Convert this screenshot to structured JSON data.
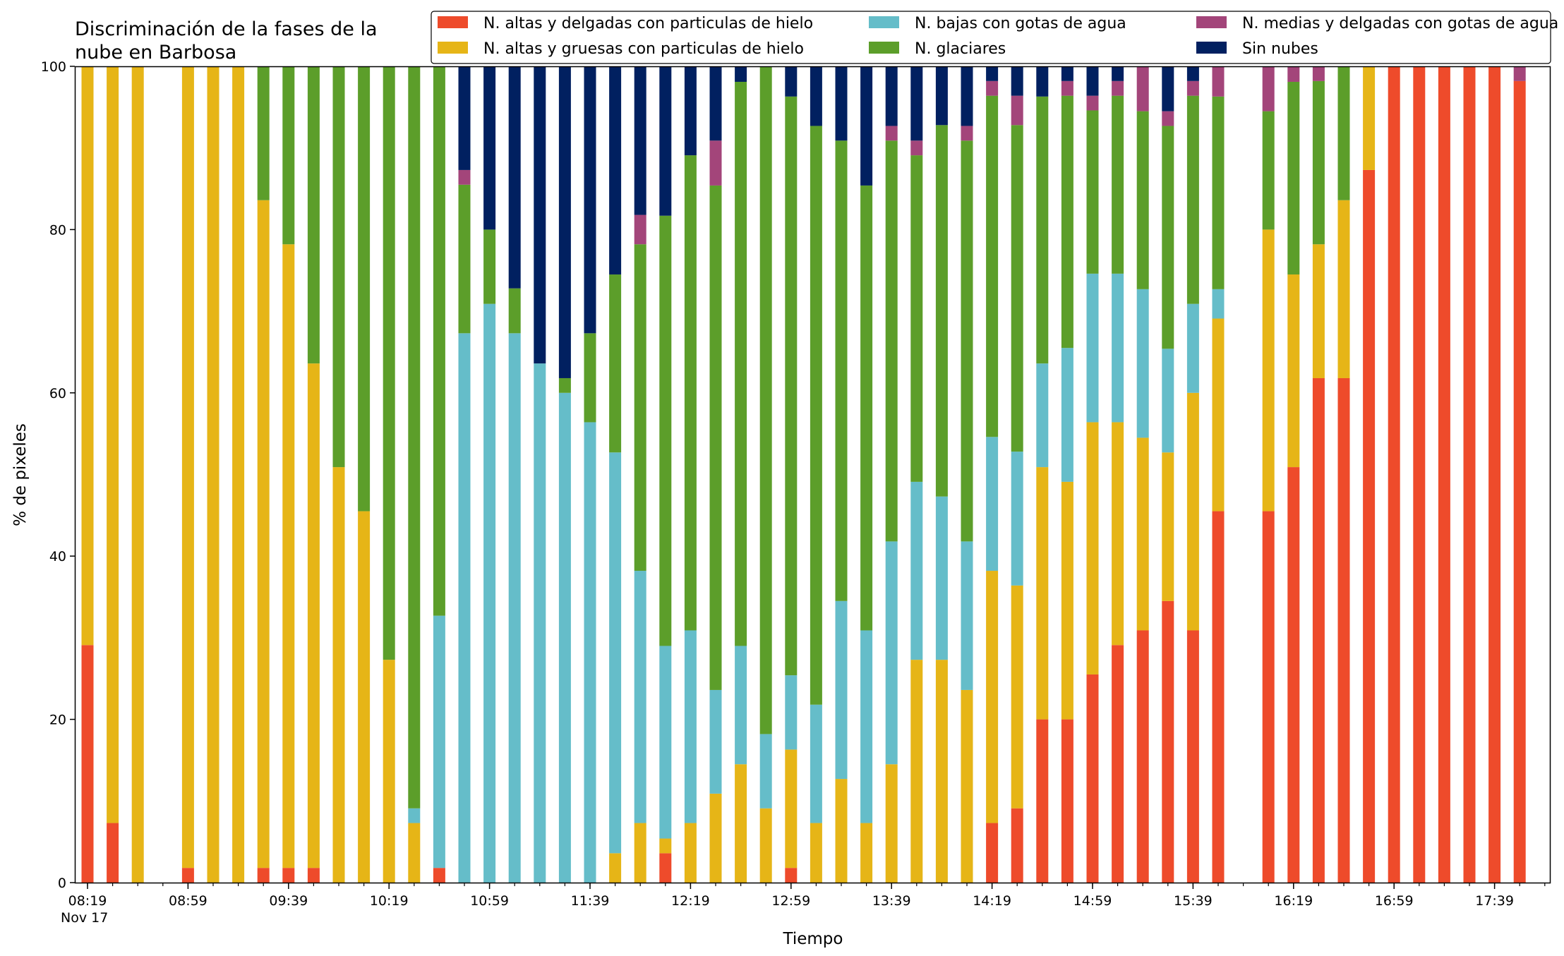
{
  "chart_data": {
    "type": "bar",
    "stacked": true,
    "title_lines": [
      "Discriminación de la fases de la",
      "nube en Barbosa"
    ],
    "xlabel": "Tiempo",
    "ylabel": "% de pixeles",
    "ylim": [
      0,
      100
    ],
    "yticks": [
      0,
      20,
      40,
      60,
      80,
      100
    ],
    "x_tick_labels": [
      {
        "slot": 0,
        "label": "08:19"
      },
      {
        "slot": 4,
        "label": "08:59"
      },
      {
        "slot": 8,
        "label": "09:39"
      },
      {
        "slot": 12,
        "label": "10:19"
      },
      {
        "slot": 16,
        "label": "10:59"
      },
      {
        "slot": 20,
        "label": "11:39"
      },
      {
        "slot": 24,
        "label": "12:19"
      },
      {
        "slot": 28,
        "label": "12:59"
      },
      {
        "slot": 32,
        "label": "13:39"
      },
      {
        "slot": 36,
        "label": "14:19"
      },
      {
        "slot": 40,
        "label": "14:59"
      },
      {
        "slot": 44,
        "label": "15:39"
      },
      {
        "slot": 48,
        "label": "16:19"
      },
      {
        "slot": 52,
        "label": "16:59"
      },
      {
        "slot": 56,
        "label": "17:39"
      }
    ],
    "x_sublabel": "Nov 17",
    "grid": false,
    "legend_position": "top-right",
    "series": [
      {
        "name": "N. altas y delgadas con particulas de hielo",
        "color": "#ee4b2b"
      },
      {
        "name": "N. altas y gruesas con particulas de hielo",
        "color": "#e6b517"
      },
      {
        "name": "N. bajas con gotas de agua",
        "color": "#65bdc9"
      },
      {
        "name": "N. glaciares",
        "color": "#5c9e2a"
      },
      {
        "name": "N. medias y delgadas con gotas de agua",
        "color": "#a3457a"
      },
      {
        "name": "Sin nubes",
        "color": "#012060"
      }
    ],
    "bars": [
      {
        "slot": 0,
        "values": [
          29.1,
          70.9,
          0,
          0,
          0,
          0
        ]
      },
      {
        "slot": 1,
        "values": [
          7.3,
          92.7,
          0,
          0,
          0,
          0
        ]
      },
      {
        "slot": 2,
        "values": [
          0,
          100,
          0,
          0,
          0,
          0
        ]
      },
      {
        "slot": 4,
        "values": [
          1.8,
          98.2,
          0,
          0,
          0,
          0
        ]
      },
      {
        "slot": 5,
        "values": [
          0,
          100,
          0,
          0,
          0,
          0
        ]
      },
      {
        "slot": 6,
        "values": [
          0,
          100,
          0,
          0,
          0,
          0
        ]
      },
      {
        "slot": 7,
        "values": [
          1.8,
          81.8,
          0,
          16.4,
          0,
          0
        ]
      },
      {
        "slot": 8,
        "values": [
          1.8,
          76.4,
          0,
          21.8,
          0,
          0
        ]
      },
      {
        "slot": 9,
        "values": [
          1.8,
          61.8,
          0,
          36.4,
          0,
          0
        ]
      },
      {
        "slot": 10,
        "values": [
          0,
          50.9,
          0,
          49.1,
          0,
          0
        ]
      },
      {
        "slot": 11,
        "values": [
          0,
          45.5,
          0,
          54.5,
          0,
          0
        ]
      },
      {
        "slot": 12,
        "values": [
          0,
          27.3,
          0,
          72.7,
          0,
          0
        ]
      },
      {
        "slot": 13,
        "values": [
          0,
          7.3,
          1.8,
          90.9,
          0,
          0
        ]
      },
      {
        "slot": 14,
        "values": [
          1.8,
          0,
          30.9,
          67.3,
          0,
          0
        ]
      },
      {
        "slot": 15,
        "values": [
          0,
          0,
          67.3,
          18.2,
          1.8,
          12.7
        ]
      },
      {
        "slot": 16,
        "values": [
          0,
          0,
          70.9,
          9.1,
          0,
          20.0
        ]
      },
      {
        "slot": 17,
        "values": [
          0,
          0,
          67.3,
          5.5,
          0,
          27.2
        ]
      },
      {
        "slot": 18,
        "values": [
          0,
          0,
          63.6,
          0,
          0,
          36.4
        ]
      },
      {
        "slot": 19,
        "values": [
          0,
          0,
          60.0,
          1.8,
          0,
          38.2
        ]
      },
      {
        "slot": 20,
        "values": [
          0,
          0,
          56.4,
          10.9,
          0,
          32.7
        ]
      },
      {
        "slot": 21,
        "values": [
          0,
          3.6,
          49.1,
          21.8,
          0,
          25.5
        ]
      },
      {
        "slot": 22,
        "values": [
          0,
          7.3,
          30.9,
          40.0,
          3.6,
          18.2
        ]
      },
      {
        "slot": 23,
        "values": [
          3.6,
          1.8,
          23.6,
          52.7,
          0,
          18.3
        ]
      },
      {
        "slot": 24,
        "values": [
          0,
          7.3,
          23.6,
          58.2,
          0,
          10.9
        ]
      },
      {
        "slot": 25,
        "values": [
          0,
          10.9,
          12.7,
          61.8,
          5.5,
          9.1
        ]
      },
      {
        "slot": 26,
        "values": [
          0,
          14.5,
          14.5,
          69.1,
          0,
          1.9
        ]
      },
      {
        "slot": 27,
        "values": [
          0,
          9.1,
          9.1,
          81.8,
          0,
          0
        ]
      },
      {
        "slot": 28,
        "values": [
          1.8,
          14.5,
          9.1,
          70.9,
          0,
          3.7
        ]
      },
      {
        "slot": 29,
        "values": [
          0,
          7.3,
          14.5,
          70.9,
          0,
          7.3
        ]
      },
      {
        "slot": 30,
        "values": [
          0,
          12.7,
          21.8,
          56.4,
          0,
          9.1
        ]
      },
      {
        "slot": 31,
        "values": [
          0,
          7.3,
          23.6,
          54.5,
          0,
          14.6
        ]
      },
      {
        "slot": 32,
        "values": [
          0,
          14.5,
          27.3,
          49.1,
          1.8,
          7.3
        ]
      },
      {
        "slot": 33,
        "values": [
          0,
          27.3,
          21.8,
          40.0,
          1.8,
          9.1
        ]
      },
      {
        "slot": 34,
        "values": [
          0,
          27.3,
          20.0,
          45.5,
          0,
          7.2
        ]
      },
      {
        "slot": 35,
        "values": [
          0,
          23.6,
          18.2,
          49.1,
          1.8,
          7.3
        ]
      },
      {
        "slot": 36,
        "values": [
          7.3,
          30.9,
          16.4,
          41.8,
          1.8,
          1.8
        ]
      },
      {
        "slot": 37,
        "values": [
          9.1,
          27.3,
          16.4,
          40.0,
          3.6,
          3.6
        ]
      },
      {
        "slot": 38,
        "values": [
          20.0,
          30.9,
          12.7,
          32.7,
          0,
          3.7
        ]
      },
      {
        "slot": 39,
        "values": [
          20.0,
          29.1,
          16.4,
          30.9,
          1.8,
          1.8
        ]
      },
      {
        "slot": 40,
        "values": [
          25.5,
          30.9,
          18.2,
          20.0,
          1.8,
          3.6
        ]
      },
      {
        "slot": 41,
        "values": [
          29.1,
          27.3,
          18.2,
          21.8,
          1.8,
          1.8
        ]
      },
      {
        "slot": 42,
        "values": [
          30.9,
          23.6,
          18.2,
          21.8,
          5.5,
          0
        ]
      },
      {
        "slot": 43,
        "values": [
          34.5,
          18.2,
          12.7,
          27.3,
          1.8,
          5.5
        ]
      },
      {
        "slot": 44,
        "values": [
          30.9,
          29.1,
          10.9,
          25.5,
          1.8,
          1.8
        ]
      },
      {
        "slot": 45,
        "values": [
          45.5,
          23.6,
          3.6,
          23.6,
          3.7,
          0
        ]
      },
      {
        "slot": 47,
        "values": [
          45.5,
          34.5,
          0,
          14.5,
          5.5,
          0
        ]
      },
      {
        "slot": 48,
        "values": [
          50.9,
          23.6,
          0,
          23.6,
          1.9,
          0
        ]
      },
      {
        "slot": 49,
        "values": [
          61.8,
          16.4,
          0,
          20.0,
          1.8,
          0
        ]
      },
      {
        "slot": 50,
        "values": [
          61.8,
          21.8,
          0,
          16.4,
          0,
          0
        ]
      },
      {
        "slot": 51,
        "values": [
          87.3,
          12.7,
          0,
          0,
          0,
          0
        ]
      },
      {
        "slot": 52,
        "values": [
          100,
          0,
          0,
          0,
          0,
          0
        ]
      },
      {
        "slot": 53,
        "values": [
          100,
          0,
          0,
          0,
          0,
          0
        ]
      },
      {
        "slot": 54,
        "values": [
          100,
          0,
          0,
          0,
          0,
          0
        ]
      },
      {
        "slot": 55,
        "values": [
          100,
          0,
          0,
          0,
          0,
          0
        ]
      },
      {
        "slot": 56,
        "values": [
          100,
          0,
          0,
          0,
          0,
          0
        ]
      },
      {
        "slot": 57,
        "values": [
          98.2,
          0,
          0,
          0,
          1.8,
          0
        ]
      }
    ]
  }
}
